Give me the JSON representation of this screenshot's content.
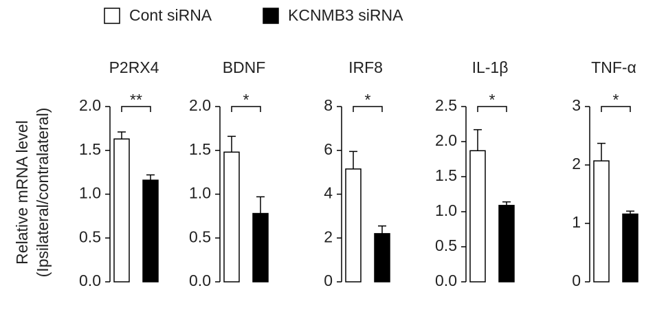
{
  "legend": [
    {
      "name": "Cont siRNA",
      "color": "#ffffff"
    },
    {
      "name": "KCNMB3 siRNA",
      "color": "#000000"
    }
  ],
  "ylabel": [
    "Relative mRNA level",
    "(Ipsilateral/contralateral)"
  ],
  "chart_data": [
    {
      "type": "bar",
      "title": "P2RX4",
      "values": [
        1.63,
        1.16
      ],
      "errors": [
        0.08,
        0.06
      ],
      "annotation": "**",
      "ylim": [
        0,
        2
      ],
      "yticks": [
        {
          "value": 0,
          "label": "0.0"
        },
        0.5,
        {
          "value": 1,
          "label": "1.0"
        },
        1.5,
        {
          "value": 2,
          "label": "2.0"
        }
      ]
    },
    {
      "type": "bar",
      "title": "BDNF",
      "values": [
        1.48,
        0.78
      ],
      "errors": [
        0.18,
        0.19
      ],
      "annotation": "*",
      "ylim": [
        0,
        2
      ],
      "yticks": [
        {
          "value": 0,
          "label": "0.0"
        },
        0.5,
        {
          "value": 1,
          "label": "1.0"
        },
        1.5,
        {
          "value": 2,
          "label": "2.0"
        }
      ]
    },
    {
      "type": "bar",
      "title": "IRF8",
      "values": [
        5.15,
        2.2
      ],
      "errors": [
        0.8,
        0.35
      ],
      "annotation": "*",
      "ylim": [
        0,
        8
      ],
      "yticks": [
        0,
        2,
        4,
        6,
        8
      ]
    },
    {
      "type": "bar",
      "title": "IL-1β",
      "values": [
        1.87,
        1.09
      ],
      "errors": [
        0.3,
        0.05
      ],
      "annotation": "*",
      "ylim": [
        0,
        2.5
      ],
      "yticks": [
        {
          "value": 0,
          "label": "0.0"
        },
        0.5,
        {
          "value": 1,
          "label": "1.0"
        },
        1.5,
        {
          "value": 2,
          "label": "2.0"
        },
        2.5
      ]
    },
    {
      "type": "bar",
      "title": "TNF-α",
      "values": [
        2.07,
        1.16
      ],
      "errors": [
        0.3,
        0.05
      ],
      "annotation": "*",
      "ylim": [
        0,
        3
      ],
      "yticks": [
        0,
        1,
        2,
        3
      ]
    }
  ]
}
